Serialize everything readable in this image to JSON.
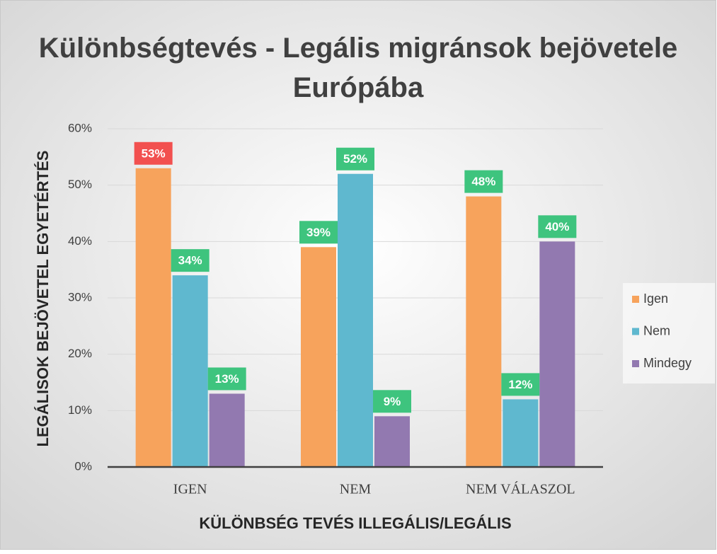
{
  "chart_data": {
    "type": "bar",
    "title": "Különbségtevés - Legális migránsok bejövetele Európába",
    "x_label": "KÜLÖNBSÉG TEVÉS ILLEGÁLIS/LEGÁLIS",
    "y_label": "LEGÁLISOK BEJÖVETEL EGYETÉRTÉS",
    "categories": [
      "IGEN",
      "NEM",
      "NEM VÁLASZOL"
    ],
    "series": [
      {
        "name": "Igen",
        "color": "#f7a35c",
        "values": [
          53,
          39,
          48
        ],
        "value_labels": [
          "53%",
          "39%",
          "48%"
        ],
        "label_colors": [
          "#f2504f",
          "#3ec47e",
          "#3ec47e"
        ]
      },
      {
        "name": "Nem",
        "color": "#5fb8cf",
        "values": [
          34,
          52,
          12
        ],
        "value_labels": [
          "34%",
          "52%",
          "12%"
        ],
        "label_colors": [
          "#3ec47e",
          "#3ec47e",
          "#3ec47e"
        ]
      },
      {
        "name": "Mindegy",
        "color": "#9279b0",
        "values": [
          13,
          9,
          40
        ],
        "value_labels": [
          "13%",
          "9%",
          "40%"
        ],
        "label_colors": [
          "#3ec47e",
          "#3ec47e",
          "#3ec47e"
        ]
      }
    ],
    "ylim": [
      0,
      60
    ],
    "yticks": [
      {
        "value": 0,
        "label": "0%"
      },
      {
        "value": 10,
        "label": "10%"
      },
      {
        "value": 20,
        "label": "20%"
      },
      {
        "value": 30,
        "label": "30%"
      },
      {
        "value": 40,
        "label": "40%"
      },
      {
        "value": 50,
        "label": "50%"
      },
      {
        "value": 60,
        "label": "60%"
      }
    ],
    "grid": true,
    "legend": "right"
  }
}
